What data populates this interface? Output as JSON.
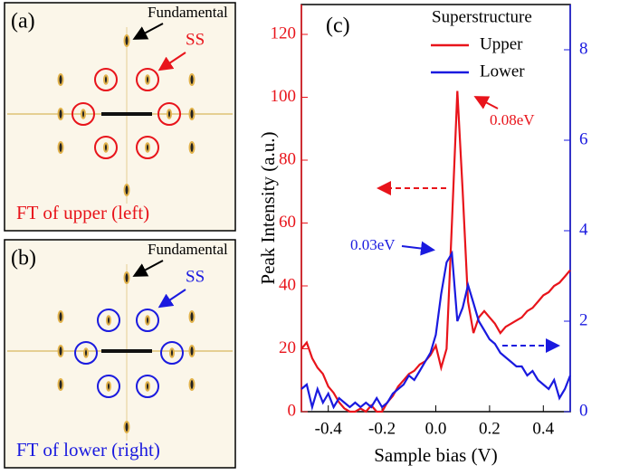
{
  "panels": [
    {
      "label": "(a)",
      "fundamental": "Fundamental",
      "ss": "SS",
      "caption": "FT of upper (left)"
    },
    {
      "label": "(b)",
      "fundamental": "Fundamental",
      "ss": "SS",
      "caption": "FT of lower (right)"
    }
  ],
  "chart_data": {
    "type": "line",
    "label": "(c)",
    "xlabel": "Sample bias (V)",
    "ylabel": "Peak Intensity (a.u.)",
    "legend_title": "Superstructure",
    "annotations": [
      "0.08eV",
      "0.03eV"
    ],
    "xlim": [
      -0.5,
      0.5
    ],
    "xticks": [
      -0.4,
      -0.2,
      {
        "value": 0,
        "label": "0.0"
      },
      0.2,
      0.4
    ],
    "ylim": [
      0,
      129.5
    ],
    "yticks": [
      0,
      20,
      40,
      60,
      80,
      100,
      120
    ],
    "y2lim": [
      0,
      9
    ],
    "y2ticks": [
      0,
      2,
      4,
      6,
      8
    ],
    "x": [
      -0.5,
      -0.48,
      -0.46,
      -0.44,
      -0.42,
      -0.4,
      -0.38,
      -0.36,
      -0.34,
      -0.32,
      -0.3,
      -0.28,
      -0.26,
      -0.24,
      -0.22,
      -0.2,
      -0.18,
      -0.16,
      -0.14,
      -0.12,
      -0.1,
      -0.08,
      -0.06,
      -0.04,
      -0.02,
      0,
      0.02,
      0.04,
      0.06,
      0.08,
      0.1,
      0.12,
      0.14,
      0.16,
      0.18,
      0.2,
      0.22,
      0.24,
      0.26,
      0.28,
      0.3,
      0.32,
      0.34,
      0.36,
      0.38,
      0.4,
      0.42,
      0.44,
      0.46,
      0.48,
      0.5
    ],
    "series": [
      {
        "name": "Upper",
        "color": "#e8141b",
        "values": [
          20,
          22,
          17,
          14,
          12,
          8,
          6,
          3,
          1,
          0,
          0,
          1,
          0,
          2,
          0,
          0,
          3,
          5,
          8,
          10,
          12,
          13,
          15,
          16,
          18,
          21,
          14,
          20,
          60,
          102,
          70,
          35,
          25,
          30,
          32,
          30,
          28,
          25,
          27,
          28,
          29,
          30,
          32,
          33,
          35,
          37,
          38,
          40,
          41,
          43,
          45
        ]
      },
      {
        "name": "Lower",
        "color": "#1a1adf",
        "axis": "y2",
        "values": [
          0.5,
          0.6,
          0.1,
          0.5,
          0.2,
          0.4,
          0.1,
          0.3,
          0.2,
          0.1,
          0.2,
          0.1,
          0.2,
          0.1,
          0.3,
          0.1,
          0.2,
          0.4,
          0.5,
          0.6,
          0.8,
          0.7,
          0.9,
          1.1,
          1.3,
          1.7,
          2.6,
          3.3,
          3.5,
          2.0,
          2.3,
          2.8,
          2.4,
          2.0,
          1.8,
          1.6,
          1.5,
          1.3,
          1.2,
          1.1,
          1.0,
          1.0,
          0.8,
          0.9,
          0.7,
          0.6,
          0.5,
          0.7,
          0.3,
          0.5,
          0.8
        ]
      }
    ]
  }
}
